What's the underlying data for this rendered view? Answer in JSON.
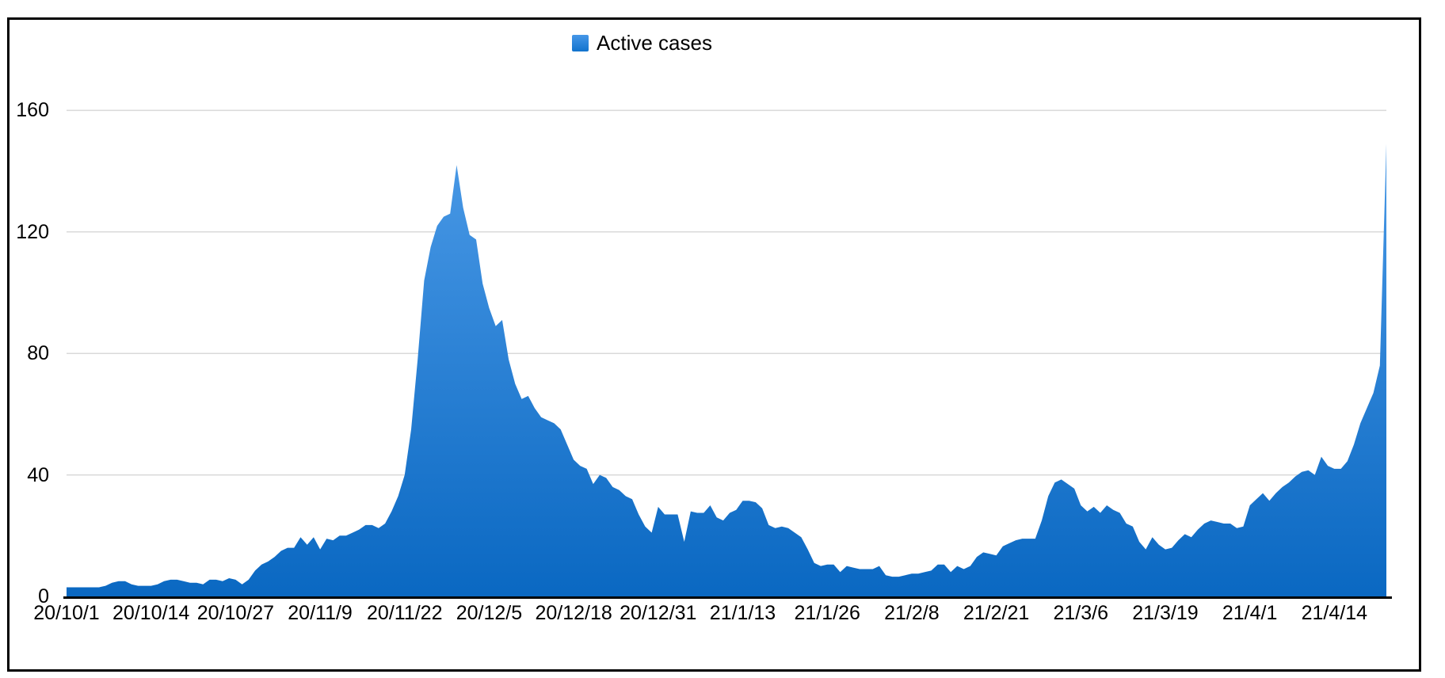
{
  "legend": {
    "label": "Active cases"
  },
  "colors": {
    "area_top": "#4f9de9",
    "area_bottom": "#0a68c2",
    "gridline": "#d9d9d9",
    "axis": "#000000",
    "frame": "#000000",
    "text": "#000000"
  },
  "chart_data": {
    "type": "area",
    "title": "",
    "series_name": "Active cases",
    "grid": "horizontal",
    "legend_position": "top-center",
    "ylim": [
      0,
      160
    ],
    "y_ticks": [
      0,
      40,
      80,
      120,
      160
    ],
    "x_tick_labels": [
      "20/10/1",
      "20/10/14",
      "20/10/27",
      "20/11/9",
      "20/11/22",
      "20/12/5",
      "20/12/18",
      "20/12/31",
      "21/1/13",
      "21/1/26",
      "21/2/8",
      "21/2/21",
      "21/3/6",
      "21/3/19",
      "21/4/1",
      "21/4/14"
    ],
    "x_tick_day_indices": [
      0,
      13,
      26,
      39,
      52,
      65,
      78,
      91,
      104,
      117,
      130,
      143,
      156,
      169,
      182,
      195
    ],
    "x_unit": "day",
    "x_start_label": "20/10/1",
    "x_end_label": "21/4/22",
    "values": [
      3,
      3,
      3,
      3,
      3,
      3,
      3.5,
      4.5,
      5,
      5,
      4,
      3.5,
      3.5,
      3.5,
      4,
      5,
      5.5,
      5.5,
      5,
      4.5,
      4.5,
      4,
      5.5,
      5.5,
      5,
      6,
      5.5,
      4,
      5.5,
      8.5,
      10.5,
      11.5,
      13,
      15,
      16,
      16,
      19.5,
      17,
      19.5,
      15.5,
      19,
      18.5,
      20,
      20,
      21,
      22,
      23.5,
      23.5,
      22.5,
      24,
      28,
      33,
      40,
      55,
      78,
      104,
      115,
      122,
      125,
      126,
      142,
      128,
      119,
      117.5,
      103,
      95,
      89,
      91,
      78,
      70,
      65,
      66,
      62,
      59,
      58,
      57,
      55,
      50,
      45,
      43,
      42,
      37,
      40,
      39,
      36,
      35,
      33,
      32,
      27,
      23,
      21,
      29.5,
      27,
      27,
      27,
      18,
      28,
      27.5,
      27.5,
      30,
      26,
      25,
      27.5,
      28.5,
      31.5,
      31.5,
      31,
      29,
      23.5,
      22.5,
      23,
      22.5,
      21,
      19.5,
      15.5,
      11,
      10,
      10.5,
      10.5,
      8,
      10,
      9.5,
      9,
      9,
      9,
      10,
      7,
      6.5,
      6.5,
      7,
      7.5,
      7.5,
      8,
      8.5,
      10.5,
      10.5,
      8,
      10,
      9,
      10,
      13,
      14.5,
      14,
      13.5,
      16.5,
      17.5,
      18.5,
      19,
      19,
      19,
      25,
      33,
      37.5,
      38.5,
      37,
      35.5,
      30,
      28,
      29.5,
      27.5,
      30,
      28.5,
      27.5,
      24,
      23,
      18,
      15.5,
      19.5,
      17,
      15.5,
      16,
      18.5,
      20.5,
      19.5,
      22,
      24,
      25,
      24.5,
      24,
      24,
      22.5,
      23,
      30,
      32,
      34,
      31.5,
      34,
      36,
      37.5,
      39.5,
      41,
      41.5,
      40,
      46,
      43,
      42,
      42,
      44.5,
      50,
      57,
      62,
      67,
      76,
      149
    ]
  }
}
